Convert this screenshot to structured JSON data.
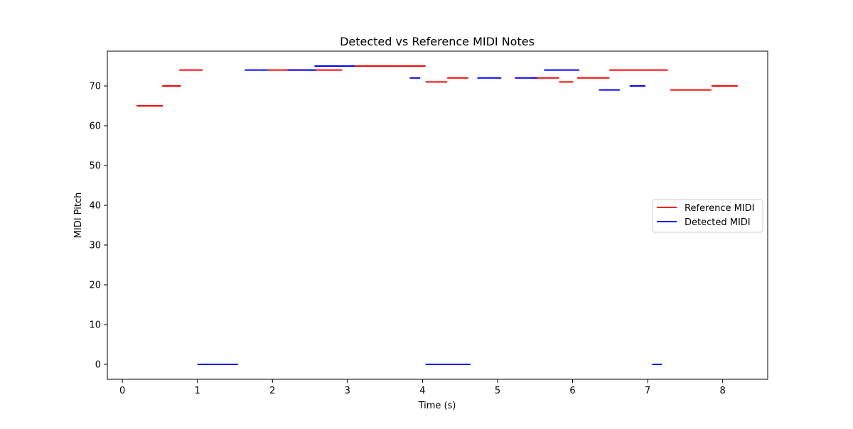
{
  "chart_data": {
    "type": "line",
    "title": "Detected vs Reference MIDI Notes",
    "xlabel": "Time (s)",
    "ylabel": "MIDI Pitch",
    "xlim": [
      -0.2,
      8.6
    ],
    "ylim": [
      -3.75,
      78.75
    ],
    "x_ticks": [
      0,
      1,
      2,
      3,
      4,
      5,
      6,
      7,
      8
    ],
    "y_ticks": [
      0,
      10,
      20,
      30,
      40,
      50,
      60,
      70
    ],
    "grid": false,
    "legend_position": "center-right",
    "series": [
      {
        "name": "Reference MIDI",
        "color": "#ff0000",
        "segments": [
          {
            "start": 0.19,
            "end": 0.54,
            "pitch": 65
          },
          {
            "start": 0.53,
            "end": 0.78,
            "pitch": 70
          },
          {
            "start": 0.76,
            "end": 1.07,
            "pitch": 74
          },
          {
            "start": 1.94,
            "end": 2.93,
            "pitch": 74
          },
          {
            "start": 3.1,
            "end": 4.04,
            "pitch": 75
          },
          {
            "start": 4.04,
            "end": 4.33,
            "pitch": 71
          },
          {
            "start": 4.33,
            "end": 4.61,
            "pitch": 72
          },
          {
            "start": 5.43,
            "end": 5.82,
            "pitch": 72
          },
          {
            "start": 5.82,
            "end": 6.01,
            "pitch": 71
          },
          {
            "start": 6.06,
            "end": 6.49,
            "pitch": 72
          },
          {
            "start": 6.49,
            "end": 7.27,
            "pitch": 74
          },
          {
            "start": 7.3,
            "end": 7.85,
            "pitch": 69
          },
          {
            "start": 7.85,
            "end": 8.2,
            "pitch": 70
          }
        ]
      },
      {
        "name": "Detected MIDI",
        "color": "#0000ff",
        "segments": [
          {
            "start": 1.0,
            "end": 1.54,
            "pitch": 0
          },
          {
            "start": 1.63,
            "end": 1.94,
            "pitch": 74
          },
          {
            "start": 2.2,
            "end": 2.58,
            "pitch": 74
          },
          {
            "start": 2.56,
            "end": 3.1,
            "pitch": 75
          },
          {
            "start": 3.83,
            "end": 3.97,
            "pitch": 72
          },
          {
            "start": 4.04,
            "end": 4.64,
            "pitch": 0
          },
          {
            "start": 4.73,
            "end": 5.05,
            "pitch": 72
          },
          {
            "start": 5.23,
            "end": 5.53,
            "pitch": 72
          },
          {
            "start": 5.62,
            "end": 6.09,
            "pitch": 74
          },
          {
            "start": 6.35,
            "end": 6.63,
            "pitch": 69
          },
          {
            "start": 6.76,
            "end": 6.97,
            "pitch": 70
          },
          {
            "start": 7.06,
            "end": 7.19,
            "pitch": 0
          }
        ]
      }
    ]
  }
}
